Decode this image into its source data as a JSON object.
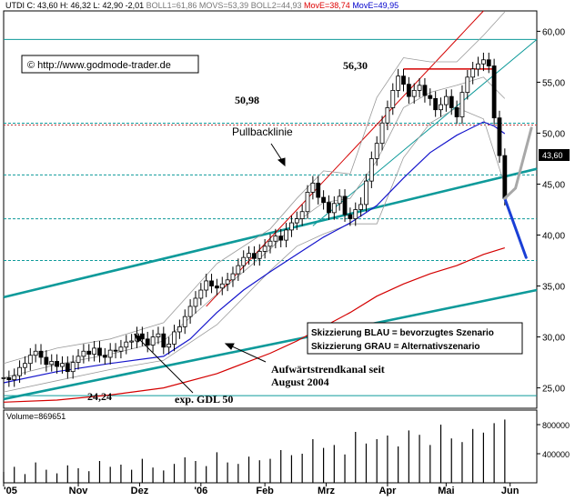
{
  "header": {
    "symbol": "UTDI",
    "quote_parts": [
      {
        "text": "UTDI C: 43,60 H: 46,32 L: 42,90 -2,01 ",
        "color": "#000000"
      },
      {
        "text": "BOLL1=61,86 ",
        "color": "#777777"
      },
      {
        "text": "MOVS=53,39 ",
        "color": "#777777"
      },
      {
        "text": "BOLL2=44,93 ",
        "color": "#777777"
      },
      {
        "text": "MovE=38,74 ",
        "color": "#dd0000"
      },
      {
        "text": "MovE=49,95",
        "color": "#0000cc"
      }
    ]
  },
  "copyright": "© http://www.godmode-trader.de",
  "annotations": {
    "level_5098": "50,98",
    "level_5630": "56,30",
    "level_2424": "24,24",
    "pullback": "Pullbacklinie",
    "trend_channel_1": "Aufwärtstrendkanal seit",
    "trend_channel_2": "August 2004",
    "ema50": "exp. GDL 50",
    "legend_blue": "Skizzierung BLAU = bevorzugtes Szenario",
    "legend_grey": "Skizzierung GRAU = Alternativszenario"
  },
  "price_tag": "43,60",
  "volume_label": "Volume=869651",
  "colors": {
    "teal": "#0e9a9a",
    "blue_scenario": "#1a3fd6",
    "grey_scenario": "#a8a8a8",
    "ema_red": "#d40000",
    "ema_blue": "#1515cc",
    "bollinger": "#9a9a9a",
    "candles": "#000000"
  },
  "chart_data": {
    "type": "line",
    "title": "",
    "ylim": [
      23,
      62
    ],
    "y_ticks": [
      "60,00",
      "55,00",
      "50,00",
      "45,00",
      "40,00",
      "35,00",
      "30,00",
      "25,00"
    ],
    "y_tick_values": [
      60,
      55,
      50,
      45,
      40,
      35,
      30,
      25
    ],
    "x_ticks": [
      "'05",
      "Nov",
      "Dez",
      "'06",
      "Feb",
      "Mrz",
      "Apr",
      "Mai",
      "Jun"
    ],
    "x_tick_values": [
      0,
      14,
      25.5,
      37,
      49,
      60.5,
      72,
      83,
      95
    ],
    "x_range": [
      0,
      100
    ],
    "volume_ticks": [
      "800000",
      "400000"
    ],
    "volume_tick_values": [
      800000,
      400000
    ],
    "volume_ylim": [
      0,
      1000000
    ],
    "horizontal_levels": [
      59.2,
      50.98,
      45.9,
      41.6,
      37.5,
      24.24
    ],
    "resistance_segment": {
      "y": 56.3,
      "x": [
        75,
        92
      ]
    },
    "series": [
      {
        "name": "",
        "role": "close",
        "x": [
          0,
          1,
          2,
          3,
          4,
          5,
          6,
          7,
          8,
          9,
          10,
          11,
          12,
          13,
          14,
          15,
          16,
          17,
          18,
          19,
          20,
          21,
          22,
          23,
          24,
          25,
          26,
          27,
          28,
          29,
          30,
          31,
          32,
          33,
          34,
          35,
          36,
          37,
          38,
          39,
          40,
          41,
          42,
          43,
          44,
          45,
          46,
          47,
          48,
          49,
          50,
          51,
          52,
          53,
          54,
          55,
          56,
          57,
          58,
          59,
          60,
          61,
          62,
          63,
          64,
          65,
          66,
          67,
          68,
          69,
          70,
          71,
          72,
          73,
          74,
          75,
          76,
          77,
          78,
          79,
          80,
          81,
          82,
          83,
          84,
          85,
          86,
          87,
          88,
          89,
          90,
          91,
          92,
          93,
          94
        ],
        "y": [
          26.0,
          25.8,
          26.2,
          27.0,
          27.4,
          28.2,
          28.6,
          28.0,
          27.3,
          27.6,
          27.1,
          27.4,
          26.6,
          27.5,
          28.1,
          28.6,
          28.3,
          28.9,
          28.2,
          28.0,
          28.7,
          28.6,
          29.0,
          29.5,
          29.6,
          30.3,
          29.8,
          29.2,
          30.0,
          30.3,
          29.0,
          29.3,
          30.5,
          31.0,
          32.0,
          33.0,
          33.8,
          34.6,
          35.5,
          35.0,
          34.8,
          35.2,
          35.6,
          36.2,
          37.0,
          37.8,
          38.2,
          37.7,
          38.4,
          38.9,
          39.4,
          39.9,
          39.5,
          40.5,
          41.2,
          41.6,
          42.3,
          44.2,
          45.1,
          43.7,
          43.2,
          42.2,
          43.1,
          43.8,
          42.0,
          41.6,
          42.5,
          43.0,
          45.3,
          47.5,
          49.0,
          51.0,
          52.5,
          54.2,
          55.6,
          54.8,
          53.6,
          54.2,
          54.7,
          53.7,
          53.4,
          52.3,
          52.8,
          53.6,
          52.5,
          51.6,
          54.0,
          55.5,
          56.3,
          56.8,
          57.2,
          56.6,
          51.5,
          47.8,
          43.6
        ]
      },
      {
        "name": "",
        "role": "bollinger_mid",
        "x": [
          0,
          10,
          20,
          30,
          40,
          50,
          55,
          60,
          65,
          70,
          75,
          80,
          85,
          90,
          94
        ],
        "y": [
          26.0,
          27.3,
          28.3,
          29.6,
          34.2,
          38.6,
          41.3,
          43.2,
          43.6,
          47.3,
          52.5,
          54.0,
          54.7,
          55.5,
          53.4
        ]
      },
      {
        "name": "",
        "role": "bollinger_upper",
        "x": [
          0,
          10,
          20,
          30,
          40,
          50,
          55,
          60,
          65,
          70,
          75,
          80,
          85,
          90,
          94
        ],
        "y": [
          27.4,
          28.9,
          29.8,
          31.4,
          37.2,
          40.6,
          43.6,
          46.3,
          46.0,
          53.5,
          57.4,
          57.0,
          57.0,
          59.6,
          61.9
        ]
      },
      {
        "name": "",
        "role": "bollinger_lower",
        "x": [
          0,
          10,
          20,
          30,
          40,
          50,
          55,
          60,
          65,
          70,
          75,
          80,
          85,
          90,
          94
        ],
        "y": [
          24.6,
          25.7,
          26.8,
          27.7,
          31.2,
          36.5,
          38.9,
          40.1,
          41.1,
          41.1,
          47.6,
          51.0,
          52.5,
          51.4,
          44.9
        ]
      },
      {
        "name": "",
        "role": "ema_50",
        "x": [
          0,
          10,
          20,
          30,
          35,
          40,
          45,
          50,
          55,
          60,
          65,
          70,
          75,
          80,
          85,
          90,
          92,
          94
        ],
        "y": [
          25.5,
          26.6,
          27.4,
          28.1,
          29.8,
          32.4,
          34.6,
          36.4,
          38.1,
          39.8,
          41.2,
          42.9,
          45.6,
          48.1,
          49.8,
          51.1,
          50.7,
          49.95
        ]
      },
      {
        "name": "",
        "role": "ema_200",
        "x": [
          0,
          10,
          20,
          30,
          40,
          50,
          55,
          60,
          65,
          70,
          75,
          80,
          85,
          90,
          94
        ],
        "y": [
          23.6,
          23.8,
          24.3,
          25.0,
          26.4,
          28.4,
          29.6,
          31.0,
          32.4,
          34.0,
          35.2,
          36.2,
          37.0,
          38.1,
          38.74
        ]
      },
      {
        "name": "",
        "role": "volume",
        "x": [
          0,
          2,
          4,
          6,
          8,
          10,
          12,
          14,
          16,
          18,
          20,
          22,
          24,
          26,
          28,
          30,
          32,
          34,
          36,
          38,
          40,
          42,
          44,
          46,
          48,
          50,
          52,
          54,
          56,
          58,
          60,
          62,
          64,
          66,
          68,
          70,
          72,
          74,
          76,
          78,
          80,
          82,
          84,
          86,
          88,
          90,
          92,
          94
        ],
        "y": [
          150000,
          220000,
          120000,
          280000,
          180000,
          130000,
          240000,
          200000,
          160000,
          300000,
          220000,
          250000,
          180000,
          330000,
          210000,
          170000,
          260000,
          350000,
          300000,
          230000,
          420000,
          280000,
          260000,
          360000,
          310000,
          330000,
          450000,
          380000,
          400000,
          600000,
          480000,
          520000,
          390000,
          700000,
          540000,
          600000,
          650000,
          500000,
          720000,
          660000,
          520000,
          800000,
          610000,
          560000,
          740000,
          690000,
          820000,
          869651
        ]
      }
    ],
    "trendlines": [
      {
        "role": "channel_upper",
        "color": "teal",
        "x": [
          0,
          100
        ],
        "y": [
          33.9,
          46.5
        ]
      },
      {
        "role": "channel_lower",
        "color": "teal",
        "x": [
          0,
          100
        ],
        "y": [
          23.9,
          34.6
        ]
      },
      {
        "role": "steep_channel",
        "color": "teal",
        "x": [
          58,
          100
        ],
        "y": [
          40.9,
          59.2
        ]
      },
      {
        "role": "red_channel",
        "color": "red",
        "x": [
          38,
          90
        ],
        "y": [
          33.0,
          62.0
        ]
      }
    ],
    "scenarios": [
      {
        "role": "preferred",
        "color": "blue",
        "x": [
          94,
          98
        ],
        "y": [
          43.6,
          37.8
        ]
      },
      {
        "role": "alternative",
        "color": "grey",
        "x": [
          94,
          96,
          99
        ],
        "y": [
          43.6,
          44.6,
          50.5
        ]
      }
    ]
  }
}
